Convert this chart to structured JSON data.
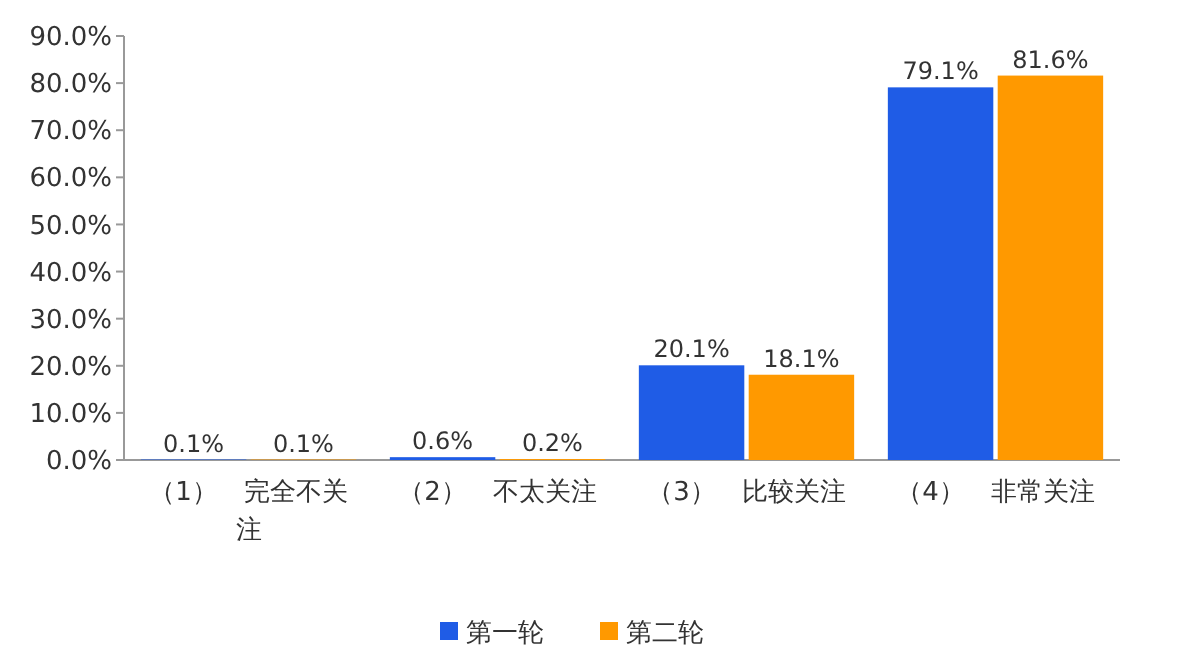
{
  "chart_data": {
    "type": "bar",
    "categories": [
      "（1）　完全不关注",
      "（2）　不太关注",
      "（3）　比较关注",
      "（4）　非常关注"
    ],
    "series": [
      {
        "name": "第一轮",
        "color": "#1f5ce6",
        "values": [
          0.1,
          0.6,
          20.1,
          79.1
        ],
        "value_labels": [
          "0.1%",
          "0.6%",
          "20.1%",
          "79.1%"
        ]
      },
      {
        "name": "第二轮",
        "color": "#ff9900",
        "values": [
          0.1,
          0.2,
          18.1,
          81.6
        ],
        "value_labels": [
          "0.1%",
          "0.2%",
          "18.1%",
          "81.6%"
        ]
      }
    ],
    "ylim": [
      0,
      90
    ],
    "yticks": [
      {
        "value": 0,
        "label": "0.0%"
      },
      {
        "value": 10,
        "label": "10.0%"
      },
      {
        "value": 20,
        "label": "20.0%"
      },
      {
        "value": 30,
        "label": "30.0%"
      },
      {
        "value": 40,
        "label": "40.0%"
      },
      {
        "value": 50,
        "label": "50.0%"
      },
      {
        "value": 60,
        "label": "60.0%"
      },
      {
        "value": 70,
        "label": "70.0%"
      },
      {
        "value": 80,
        "label": "80.0%"
      },
      {
        "value": 90,
        "label": "90.0%"
      }
    ],
    "grid": false,
    "legend": "bottom"
  }
}
